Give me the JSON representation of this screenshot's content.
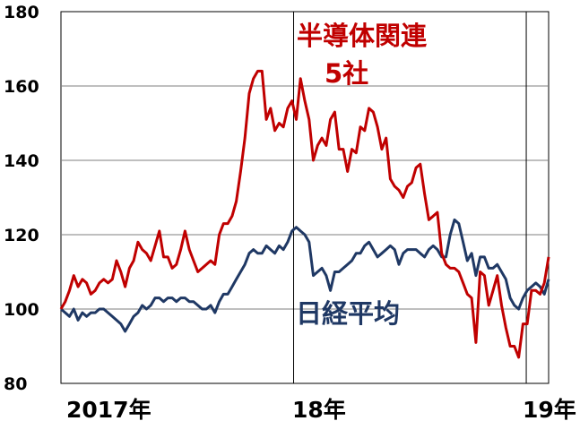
{
  "chart_data": {
    "type": "line",
    "ylim": [
      80,
      180
    ],
    "y_ticks": [
      "180",
      "160",
      "140",
      "120",
      "100",
      "80"
    ],
    "x_ticks": [
      {
        "label": "2017年",
        "x": 0
      },
      {
        "label": "18年",
        "x": 52
      },
      {
        "label": "19年",
        "x": 104
      }
    ],
    "grid": true,
    "x_max": 109,
    "series_labels": {
      "semiconductor_line1": "半導体関連",
      "semiconductor_line2": "5社",
      "nikkei": "日経平均"
    },
    "colors": {
      "semiconductor": "#c00000",
      "nikkei": "#1f3864"
    },
    "series": [
      {
        "key": "semiconductor",
        "values": [
          100,
          102,
          105,
          109,
          106,
          108,
          107,
          104,
          105,
          107,
          108,
          107,
          108,
          113,
          110,
          106,
          111,
          113,
          118,
          116,
          115,
          113,
          117,
          121,
          114,
          114,
          111,
          112,
          116,
          121,
          116,
          113,
          110,
          111,
          112,
          113,
          112,
          120,
          123,
          123,
          125,
          129,
          137,
          146,
          158,
          162,
          164,
          164,
          151,
          154,
          148,
          150,
          149,
          154,
          156,
          151,
          162,
          156,
          151,
          140,
          144,
          146,
          144,
          151,
          153,
          143,
          143,
          137,
          143,
          142,
          149,
          148,
          154,
          153,
          149,
          143,
          146,
          135,
          133,
          132,
          130,
          133,
          134,
          138,
          139,
          131,
          124,
          125,
          126,
          115,
          112,
          111,
          111,
          110,
          107,
          104,
          103,
          91,
          110,
          109,
          101,
          105,
          109,
          101,
          95,
          90,
          90,
          87,
          96,
          96,
          105,
          105,
          104,
          107,
          114
        ]
      },
      {
        "key": "nikkei",
        "values": [
          100,
          99,
          98,
          100,
          97,
          99,
          98,
          99,
          99,
          100,
          100,
          99,
          98,
          97,
          96,
          94,
          96,
          98,
          99,
          101,
          100,
          101,
          103,
          103,
          102,
          103,
          103,
          102,
          103,
          103,
          102,
          102,
          101,
          100,
          100,
          101,
          99,
          102,
          104,
          104,
          106,
          108,
          110,
          112,
          115,
          116,
          115,
          115,
          117,
          116,
          115,
          117,
          116,
          118,
          121,
          122,
          121,
          120,
          118,
          109,
          110,
          111,
          109,
          105,
          110,
          110,
          111,
          112,
          113,
          115,
          115,
          117,
          118,
          116,
          114,
          115,
          116,
          117,
          116,
          112,
          115,
          116,
          116,
          116,
          115,
          114,
          116,
          117,
          116,
          114,
          114,
          120,
          124,
          123,
          118,
          113,
          115,
          109,
          114,
          114,
          111,
          111,
          112,
          110,
          108,
          103,
          101,
          100,
          103,
          105,
          106,
          107,
          106,
          104,
          108
        ]
      }
    ]
  }
}
